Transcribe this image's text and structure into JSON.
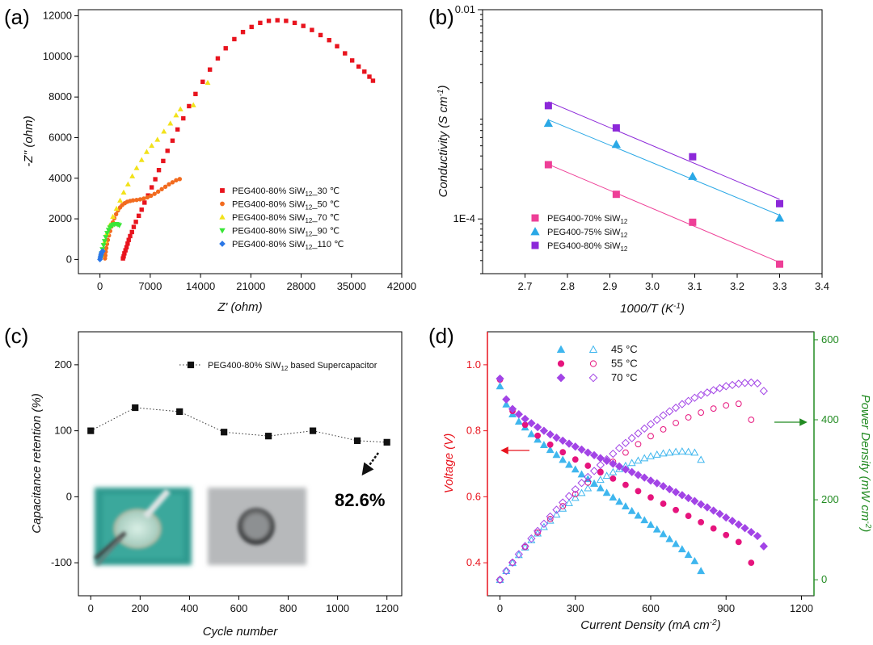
{
  "colors": {
    "p30": "#e8141e",
    "p50": "#f26b1f",
    "p70": "#f2e21b",
    "p90": "#39e637",
    "p110": "#2b77e6",
    "pink": "#ee3f97",
    "blue": "#2aa8e6",
    "purple": "#8c28d9",
    "t45": "#3fb6ee",
    "t55": "#e6147d",
    "t70": "#a244e6",
    "voltage_axis": "#e8141e",
    "power_axis": "#228b22"
  },
  "panel_labels": [
    "(a)",
    "(b)",
    "(c)",
    "(d)"
  ],
  "chart_data": [
    {
      "panel": "(a)",
      "type": "scatter",
      "xlabel": "Z' (ohm)",
      "ylabel": "-Z'' (ohm)",
      "xlim": [
        -3000,
        42000
      ],
      "ylim": [
        -700,
        12300
      ],
      "xticks": [
        0,
        7000,
        14000,
        21000,
        28000,
        35000,
        42000
      ],
      "yticks": [
        0,
        2000,
        4000,
        6000,
        8000,
        10000,
        12000
      ],
      "legend_position": "lower-right",
      "series": [
        {
          "name": "PEG400-80% SiW12_30 ℃",
          "legend_prefix": "PEG400-80% SiW",
          "legend_sub": "12",
          "legend_suffix": "_30 ℃",
          "marker": "square",
          "color_key": "p30",
          "x": [
            3200,
            3300,
            3400,
            3550,
            3700,
            3850,
            4000,
            4200,
            4450,
            4700,
            5000,
            5400,
            5800,
            6200,
            6700,
            7200,
            7700,
            8200,
            8800,
            9400,
            10100,
            10800,
            11600,
            12400,
            13300,
            14300,
            15300,
            16400,
            17500,
            18700,
            19900,
            21100,
            22300,
            23500,
            24700,
            25900,
            27100,
            28300,
            29500,
            30700,
            31900,
            33000,
            34100,
            35100,
            36000,
            36800,
            37500,
            38000
          ],
          "y": [
            50,
            150,
            300,
            450,
            600,
            780,
            960,
            1150,
            1350,
            1600,
            1850,
            2150,
            2450,
            2800,
            3150,
            3550,
            3950,
            4400,
            4850,
            5350,
            5850,
            6400,
            6950,
            7550,
            8150,
            8750,
            9350,
            9900,
            10400,
            10850,
            11200,
            11450,
            11650,
            11750,
            11780,
            11750,
            11650,
            11500,
            11300,
            11050,
            10800,
            10500,
            10150,
            9800,
            9500,
            9250,
            9000,
            8800
          ]
        },
        {
          "name": "PEG400-80% SiW12_50 ℃",
          "legend_prefix": "PEG400-80% SiW",
          "legend_sub": "12",
          "legend_suffix": "_50 ℃",
          "marker": "circle",
          "color_key": "p50",
          "x": [
            700,
            750,
            800,
            880,
            980,
            1100,
            1250,
            1420,
            1600,
            1800,
            2000,
            2250,
            2500,
            2800,
            3100,
            3450,
            3800,
            4200,
            4600,
            5100,
            5600,
            6100,
            6600,
            7100,
            7600,
            8100,
            8600,
            9100,
            9600,
            10100,
            10600,
            11100
          ],
          "y": [
            50,
            200,
            380,
            560,
            760,
            960,
            1180,
            1400,
            1620,
            1830,
            2030,
            2230,
            2410,
            2560,
            2680,
            2770,
            2840,
            2880,
            2910,
            2930,
            2960,
            3000,
            3060,
            3140,
            3230,
            3340,
            3460,
            3580,
            3700,
            3800,
            3900,
            3960
          ]
        },
        {
          "name": "PEG400-80% SiW12_70 ℃",
          "legend_prefix": "PEG400-80% SiW",
          "legend_sub": "12",
          "legend_suffix": "_70 ℃",
          "marker": "triangle",
          "color_key": "p70",
          "x": [
            200,
            400,
            700,
            1000,
            1400,
            1800,
            2300,
            2800,
            3300,
            3900,
            4500,
            5100,
            5800,
            6500,
            7200,
            8000,
            8900,
            9800,
            10600,
            11200,
            13000,
            15000
          ],
          "y": [
            200,
            500,
            900,
            1300,
            1700,
            2100,
            2500,
            2900,
            3300,
            3700,
            4100,
            4500,
            4900,
            5300,
            5600,
            5900,
            6300,
            6700,
            7100,
            7400,
            7600,
            8700
          ]
        },
        {
          "name": "PEG400-80% SiW12_90 ℃",
          "legend_prefix": "PEG400-80% SiW",
          "legend_sub": "12",
          "legend_suffix": "_90 ℃",
          "marker": "triangle-down",
          "color_key": "p90",
          "x": [
            150,
            250,
            350,
            500,
            650,
            800,
            1000,
            1200,
            1400,
            1600,
            1800,
            2000,
            2250,
            2500,
            2700
          ],
          "y": [
            100,
            300,
            500,
            700,
            900,
            1100,
            1300,
            1450,
            1570,
            1650,
            1700,
            1730,
            1740,
            1720,
            1680
          ]
        },
        {
          "name": "PEG400-80% SiW12_110 ℃",
          "legend_prefix": "PEG400-80% SiW",
          "legend_sub": "12",
          "legend_suffix": "_110 ℃",
          "marker": "diamond",
          "color_key": "p110",
          "x": [
            0,
            50,
            100,
            150,
            200,
            250,
            300,
            350,
            400
          ],
          "y": [
            0,
            80,
            160,
            240,
            300,
            350,
            380,
            400,
            410
          ]
        }
      ]
    },
    {
      "panel": "(b)",
      "type": "scatter-fit",
      "xlabel": "1000/T (K-1)",
      "ylabel": "Conductivity (S cm-1)",
      "xlim": [
        2.6,
        3.4
      ],
      "ylim": [
        3e-05,
        0.01
      ],
      "yscale": "log",
      "xticks": [
        2.7,
        2.8,
        2.9,
        3.0,
        3.1,
        3.2,
        3.3,
        3.4
      ],
      "yticks": [
        {
          "value": 0.01,
          "label": "0.01"
        },
        {
          "value": 0.0001,
          "label": "1E-4"
        }
      ],
      "legend_position": "lower-left",
      "series": [
        {
          "name": "PEG400-70% SiW12",
          "legend_prefix": "PEG400-70% SiW",
          "legend_sub": "12",
          "color_key": "pink",
          "x": [
            2.755,
            2.915,
            3.095,
            3.3
          ],
          "y": [
            0.00033,
            0.000172,
            9.3e-05,
            3.7e-05
          ]
        },
        {
          "name": "PEG400-75% SiW12",
          "legend_prefix": "PEG400-75% SiW",
          "legend_sub": "12",
          "color_key": "blue",
          "x": [
            2.755,
            2.915,
            3.095,
            3.3
          ],
          "y": [
            0.00082,
            0.000516,
            0.000255,
            0.000102
          ]
        },
        {
          "name": "PEG400-80% SiW12",
          "legend_prefix": "PEG400-80% SiW",
          "legend_sub": "12",
          "color_key": "purple",
          "x": [
            2.755,
            2.915,
            3.095,
            3.3
          ],
          "y": [
            0.00121,
            0.000742,
            0.000393,
            0.00014
          ]
        }
      ]
    },
    {
      "panel": "(c)",
      "type": "line",
      "xlabel": "Cycle number",
      "ylabel": "Capacitance retention (%)",
      "xlim": [
        -50,
        1260
      ],
      "ylim": [
        -150,
        250
      ],
      "xticks": [
        0,
        200,
        400,
        600,
        800,
        1000,
        1200
      ],
      "yticks": [
        -100,
        0,
        100,
        200
      ],
      "legend_position": "top-right",
      "series": [
        {
          "name": "PEG400-80% SiW12 based Supercapacitor",
          "legend_prefix": "PEG400-80% SiW",
          "legend_sub": "12",
          "legend_suffix": " based Supercapacitor",
          "x": [
            0,
            180,
            360,
            540,
            720,
            900,
            1080,
            1200
          ],
          "y": [
            100,
            135,
            129,
            98,
            92,
            100,
            85,
            82.6
          ]
        }
      ],
      "annotation": "82.6%"
    },
    {
      "panel": "(d)",
      "type": "scatter-dual-axis",
      "xlabel": "Current Density (mA cm-2)",
      "ylabel_left": "Voltage (V)",
      "ylabel_right": "Power Density (mW cm-2)",
      "xlim": [
        -50,
        1250
      ],
      "ylim_left": [
        0.3,
        1.1
      ],
      "ylim_right": [
        -40,
        620
      ],
      "xticks": [
        0,
        300,
        600,
        900,
        1200
      ],
      "yticks_left": [
        0.4,
        0.6,
        0.8,
        1.0
      ],
      "yticks_right": [
        0,
        200,
        400,
        600
      ],
      "legend_position": "top-left",
      "legend": [
        "45 °C",
        "55 °C",
        "70 °C"
      ],
      "series": [
        {
          "name": "45 °C voltage",
          "marker": "triangle",
          "filled": true,
          "axis": "left",
          "color_key": "t45",
          "x": [
            0,
            25,
            50,
            75,
            100,
            125,
            150,
            175,
            200,
            225,
            250,
            275,
            300,
            325,
            350,
            375,
            400,
            425,
            450,
            475,
            500,
            525,
            550,
            575,
            600,
            625,
            650,
            675,
            700,
            725,
            750,
            775,
            800
          ],
          "y": [
            0.935,
            0.88,
            0.85,
            0.828,
            0.81,
            0.79,
            0.773,
            0.757,
            0.742,
            0.727,
            0.712,
            0.697,
            0.683,
            0.668,
            0.654,
            0.64,
            0.626,
            0.612,
            0.598,
            0.585,
            0.571,
            0.557,
            0.543,
            0.529,
            0.515,
            0.501,
            0.487,
            0.472,
            0.457,
            0.441,
            0.424,
            0.405,
            0.375
          ]
        },
        {
          "name": "45 °C power",
          "marker": "triangle",
          "filled": false,
          "axis": "right",
          "color_key": "t45",
          "x": [
            0,
            25,
            50,
            75,
            100,
            125,
            150,
            175,
            200,
            225,
            250,
            275,
            300,
            325,
            350,
            375,
            400,
            425,
            450,
            475,
            500,
            525,
            550,
            575,
            600,
            625,
            650,
            675,
            700,
            725,
            750,
            775,
            800
          ],
          "y": [
            0,
            22,
            42,
            62,
            81,
            99,
            116,
            132,
            148,
            163,
            178,
            192,
            205,
            217,
            229,
            240,
            250,
            260,
            269,
            277,
            285,
            292,
            298,
            304,
            309,
            313,
            316,
            318,
            320,
            321,
            320,
            318,
            300
          ]
        },
        {
          "name": "55 °C voltage",
          "marker": "circle",
          "filled": true,
          "axis": "left",
          "color_key": "t55",
          "x": [
            0,
            50,
            100,
            150,
            200,
            250,
            300,
            350,
            400,
            450,
            500,
            550,
            600,
            650,
            700,
            750,
            800,
            850,
            900,
            950,
            1000
          ],
          "y": [
            0.955,
            0.86,
            0.818,
            0.785,
            0.758,
            0.735,
            0.713,
            0.694,
            0.674,
            0.655,
            0.636,
            0.617,
            0.598,
            0.579,
            0.56,
            0.542,
            0.523,
            0.504,
            0.484,
            0.463,
            0.4
          ]
        },
        {
          "name": "55 °C power",
          "marker": "circle",
          "filled": false,
          "axis": "right",
          "color_key": "t55",
          "x": [
            0,
            50,
            100,
            150,
            200,
            250,
            300,
            350,
            400,
            450,
            500,
            550,
            600,
            650,
            700,
            750,
            800,
            850,
            900,
            950,
            1000
          ],
          "y": [
            0,
            43,
            82,
            118,
            152,
            184,
            214,
            243,
            270,
            295,
            318,
            339,
            359,
            376,
            392,
            406,
            418,
            428,
            436,
            440,
            400
          ]
        },
        {
          "name": "70 °C voltage",
          "marker": "diamond",
          "filled": true,
          "axis": "left",
          "color_key": "t70",
          "x": [
            0,
            25,
            50,
            75,
            100,
            125,
            150,
            175,
            200,
            225,
            250,
            275,
            300,
            325,
            350,
            375,
            400,
            425,
            450,
            475,
            500,
            525,
            550,
            575,
            600,
            625,
            650,
            675,
            700,
            725,
            750,
            775,
            800,
            825,
            850,
            875,
            900,
            925,
            950,
            975,
            1000,
            1025,
            1050
          ],
          "y": [
            0.958,
            0.895,
            0.866,
            0.85,
            0.836,
            0.823,
            0.811,
            0.8,
            0.789,
            0.779,
            0.77,
            0.761,
            0.752,
            0.743,
            0.734,
            0.726,
            0.717,
            0.709,
            0.7,
            0.692,
            0.683,
            0.675,
            0.666,
            0.658,
            0.649,
            0.641,
            0.632,
            0.623,
            0.614,
            0.605,
            0.596,
            0.587,
            0.577,
            0.568,
            0.558,
            0.548,
            0.537,
            0.527,
            0.516,
            0.505,
            0.493,
            0.481,
            0.45
          ]
        },
        {
          "name": "70 °C power",
          "marker": "diamond",
          "filled": false,
          "axis": "right",
          "color_key": "t70",
          "x": [
            0,
            25,
            50,
            75,
            100,
            125,
            150,
            175,
            200,
            225,
            250,
            275,
            300,
            325,
            350,
            375,
            400,
            425,
            450,
            475,
            500,
            525,
            550,
            575,
            600,
            625,
            650,
            675,
            700,
            725,
            750,
            775,
            800,
            825,
            850,
            875,
            900,
            925,
            950,
            975,
            1000,
            1025,
            1050
          ],
          "y": [
            0,
            22,
            43,
            64,
            84,
            103,
            122,
            140,
            158,
            175,
            193,
            209,
            226,
            242,
            257,
            272,
            287,
            301,
            315,
            329,
            342,
            354,
            366,
            378,
            389,
            400,
            411,
            421,
            430,
            439,
            447,
            455,
            462,
            468,
            474,
            479,
            484,
            487,
            490,
            492,
            493,
            491,
            472
          ]
        }
      ],
      "arrows": [
        {
          "direction": "left",
          "color_key": "voltage_axis"
        },
        {
          "direction": "right",
          "color_key": "power_axis"
        }
      ]
    }
  ]
}
